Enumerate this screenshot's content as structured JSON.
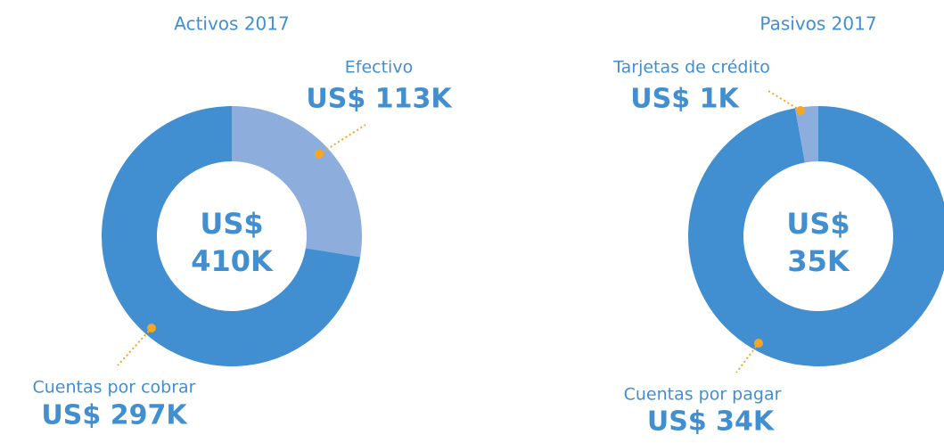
{
  "chart_data": [
    {
      "type": "pie",
      "title": "Activos 2017",
      "categories": [
        "Efectivo",
        "Cuentas por cobrar"
      ],
      "values": [
        113,
        297
      ],
      "value_labels": [
        "US$ 113K",
        "US$ 297K"
      ],
      "colors": [
        "#8daedd",
        "#418fd0"
      ],
      "center_label": [
        "US$",
        "410K"
      ]
    },
    {
      "type": "pie",
      "title": "Pasivos 2017",
      "categories": [
        "Cuentas por pagar",
        "Tarjetas de crédito"
      ],
      "values": [
        34,
        1
      ],
      "value_labels": [
        "US$ 34K",
        "US$ 1K"
      ],
      "colors": [
        "#418fd0",
        "#8daedd"
      ],
      "center_label": [
        "US$",
        "35K"
      ]
    }
  ]
}
